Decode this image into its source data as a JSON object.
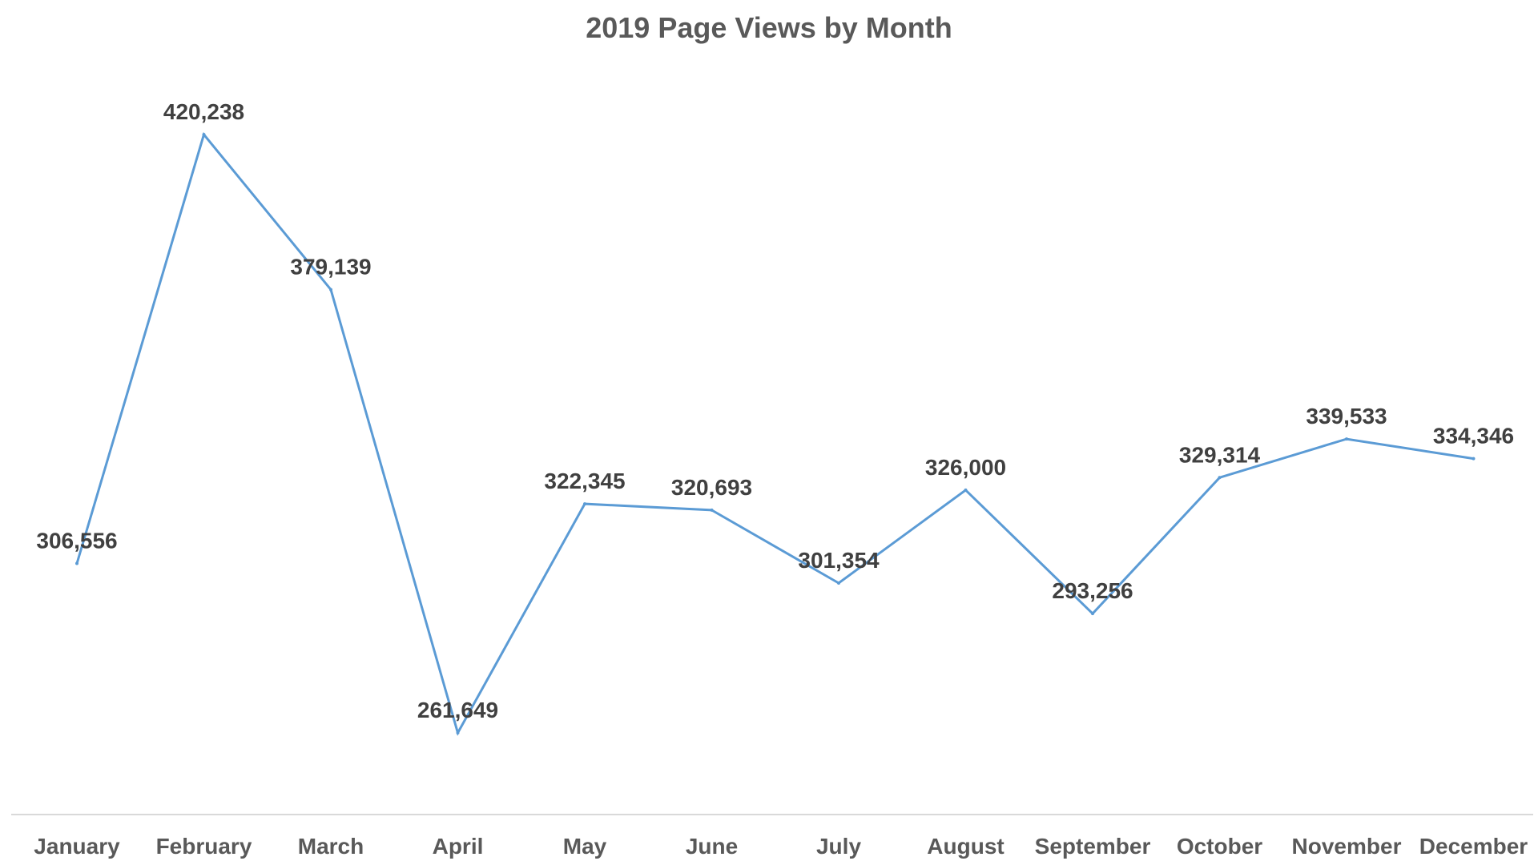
{
  "chart_data": {
    "type": "line",
    "title": "2019 Page Views by Month",
    "xlabel": "",
    "ylabel": "",
    "categories": [
      "January",
      "February",
      "March",
      "April",
      "May",
      "June",
      "July",
      "August",
      "September",
      "October",
      "November",
      "December"
    ],
    "series": [
      {
        "values": [
          306556,
          420238,
          379139,
          261649,
          322345,
          320693,
          301354,
          326000,
          293256,
          329314,
          339533,
          334346
        ],
        "labels": [
          "306,556",
          "420,238",
          "379,139",
          "261,649",
          "322,345",
          "320,693",
          "301,354",
          "326,000",
          "293,256",
          "329,314",
          "339,533",
          "334,346"
        ]
      }
    ],
    "grid": false,
    "legend": "none",
    "colors": {
      "line": "#5B9BD5",
      "axis": "#D9D9D9"
    }
  }
}
